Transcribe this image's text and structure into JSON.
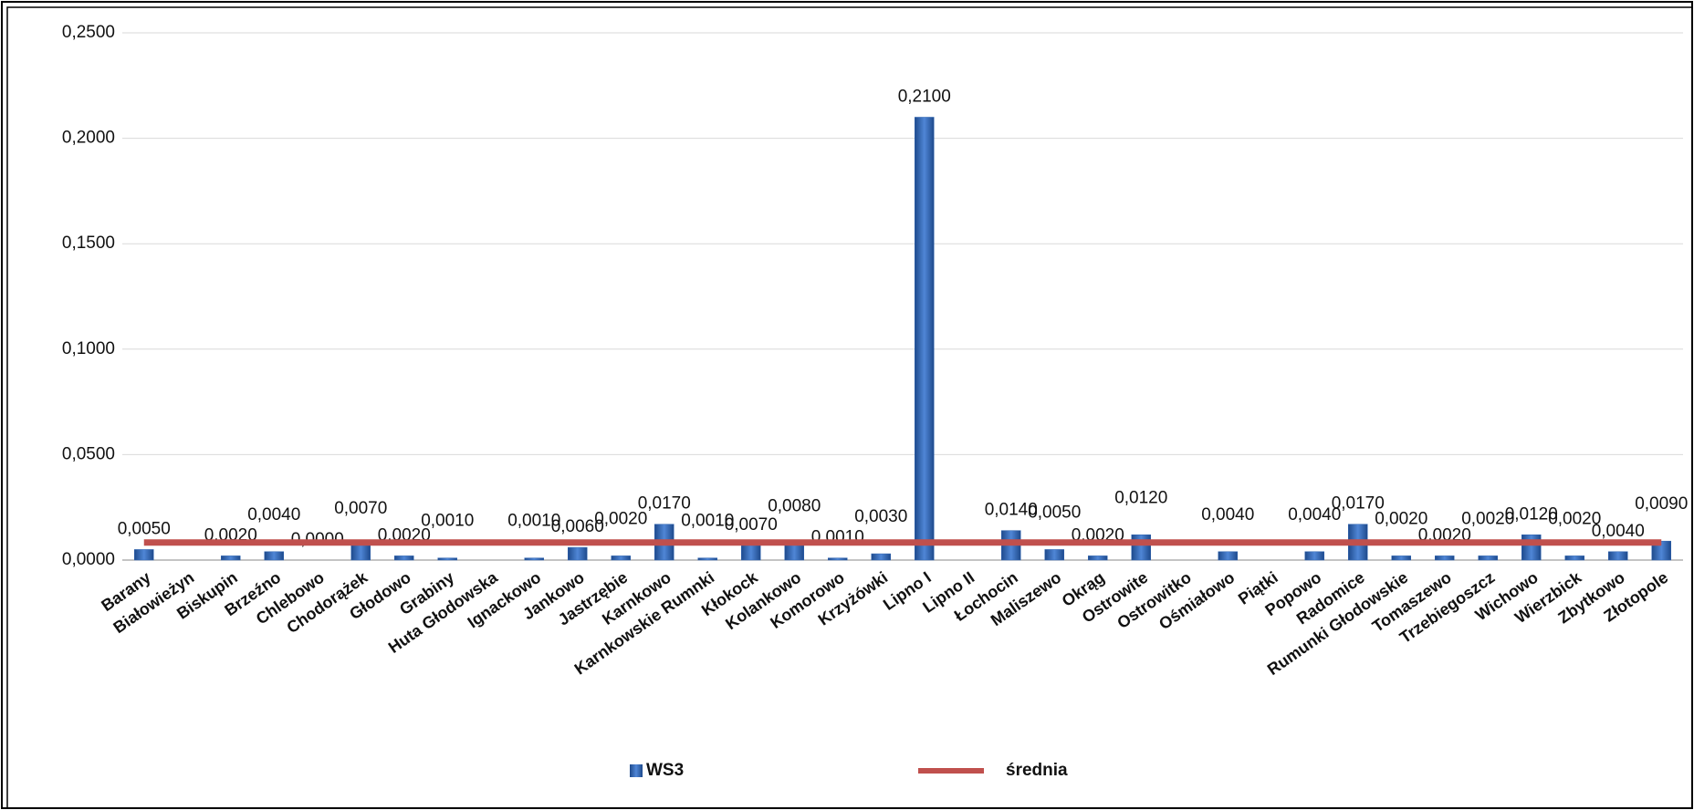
{
  "chart_data": {
    "type": "bar",
    "categories": [
      "Barany",
      "Białowieżyn",
      "Biskupin",
      "Brzeźno",
      "Chlebowo",
      "Chodorążek",
      "Głodowo",
      "Grabiny",
      "Huta Głodowska",
      "Ignackowo",
      "Jankowo",
      "Jastrzębie",
      "Karnkowo",
      "Karnkowskie Rumnki",
      "Kłokock",
      "Kolankowo",
      "Komorowo",
      "Krzyżówki",
      "Lipno I",
      "Lipno II",
      "Łochocin",
      "Maliszewo",
      "Okrąg",
      "Ostrowite",
      "Ostrowitko",
      "Ośmiałowo",
      "Piątki",
      "Popowo",
      "Radomice",
      "Rumunki Głodowskie",
      "Tomaszewo",
      "Trzebiegoszcz",
      "Wichowo",
      "Wierzbick",
      "Zbytkowo",
      "Złotopole"
    ],
    "series": [
      {
        "name": "WS3",
        "color": "#2f64b0",
        "type": "bar",
        "values": [
          0.005,
          null,
          0.002,
          0.004,
          0,
          0.007,
          0.002,
          0.001,
          null,
          0.001,
          0.006,
          0.002,
          0.017,
          0.001,
          0.007,
          0.008,
          0.001,
          0.003,
          0.21,
          null,
          0.014,
          0.005,
          0.002,
          0.012,
          null,
          0.004,
          null,
          0.004,
          0.017,
          0.002,
          0.002,
          0.002,
          0.012,
          0.002,
          0.004,
          0.009
        ],
        "value_labels": [
          "0,0050",
          null,
          "0,0020",
          "0,0040",
          "0,0000",
          "0,0070",
          "0,0020",
          "0,0010",
          null,
          "0,0010",
          "0,0060",
          "0,0020",
          "0,0170",
          "0,0010",
          "0,0070",
          "0,0080",
          "0,0010",
          "0,0030",
          "0,2100",
          null,
          "0,0140",
          "0,0050",
          "0,0020",
          "0,0120",
          null,
          "0,0040",
          null,
          "0,0040",
          "0,0170",
          "0,0020",
          "0,0020",
          "0,0020",
          "0,0120",
          "0,0020",
          "0,0040",
          "0,0090"
        ]
      },
      {
        "name": "średnia",
        "color": "#c0504d",
        "type": "line",
        "values": [
          0.0083,
          0.0083,
          0.0083,
          0.0083,
          0.0083,
          0.0083,
          0.0083,
          0.0083,
          0.0083,
          0.0083,
          0.0083,
          0.0083,
          0.0083,
          0.0083,
          0.0083,
          0.0083,
          0.0083,
          0.0083,
          0.0083,
          0.0083,
          0.0083,
          0.0083,
          0.0083,
          0.0083,
          0.0083,
          0.0083,
          0.0083,
          0.0083,
          0.0083,
          0.0083,
          0.0083,
          0.0083,
          0.0083,
          0.0083,
          0.0083,
          0.0083
        ]
      }
    ],
    "ylim": [
      0,
      0.25
    ],
    "yticks": [
      {
        "value": 0,
        "label": "0,0000"
      },
      {
        "value": 0.05,
        "label": "0,0500"
      },
      {
        "value": 0.1,
        "label": "0,1000"
      },
      {
        "value": 0.15,
        "label": "0,1500"
      },
      {
        "value": 0.2,
        "label": "0,2000"
      },
      {
        "value": 0.25,
        "label": "0,2500"
      }
    ],
    "grid": true
  }
}
